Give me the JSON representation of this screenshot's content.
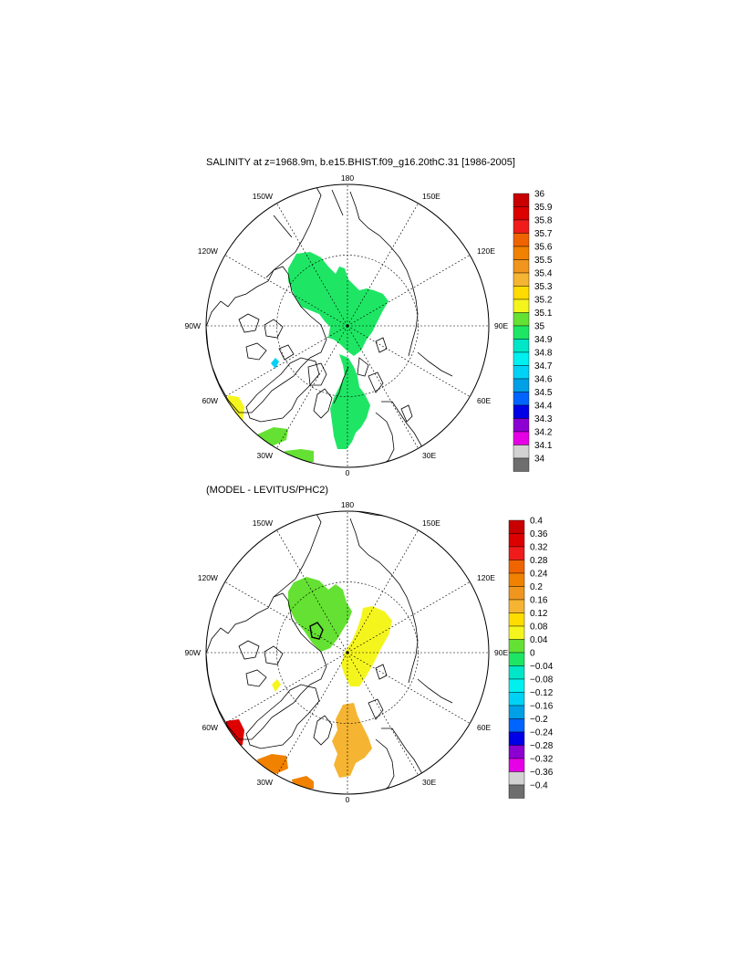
{
  "panel1": {
    "title": "SALINITY at z=1968.9m, b.e15.BHIST.f09_g16.20thC.31 [1986-2005]",
    "lon_labels": [
      "180",
      "150E",
      "120E",
      "90E",
      "60E",
      "30E",
      "0",
      "30W",
      "60W",
      "90W",
      "120W",
      "150W"
    ],
    "colorbar": {
      "labels": [
        "36",
        "35.9",
        "35.8",
        "35.7",
        "35.6",
        "35.5",
        "35.4",
        "35.3",
        "35.2",
        "35.1",
        "35",
        "34.9",
        "34.8",
        "34.7",
        "34.6",
        "34.5",
        "34.4",
        "34.3",
        "34.2",
        "34.1",
        "34"
      ],
      "colors": [
        "#c80000",
        "#dc0000",
        "#f01c1c",
        "#f06400",
        "#f08200",
        "#f0961e",
        "#f5b432",
        "#ffdc00",
        "#f5f51e",
        "#64e132",
        "#1ee664",
        "#00e6c8",
        "#00f0f0",
        "#00d2f5",
        "#00a0e6",
        "#0064ff",
        "#0000e6",
        "#8c00d2",
        "#e600e6",
        "#d2d2d2",
        "#6e6e6e"
      ]
    }
  },
  "panel2": {
    "title": "(MODEL - LEVITUS/PHC2)",
    "lon_labels": [
      "180",
      "150E",
      "120E",
      "90E",
      "60E",
      "30E",
      "0",
      "30W",
      "60W",
      "90W",
      "120W",
      "150W"
    ],
    "colorbar": {
      "labels": [
        "0.4",
        "0.36",
        "0.32",
        "0.28",
        "0.24",
        "0.2",
        "0.16",
        "0.12",
        "0.08",
        "0.04",
        "0",
        "−0.04",
        "−0.08",
        "−0.12",
        "−0.16",
        "−0.2",
        "−0.24",
        "−0.28",
        "−0.32",
        "−0.36",
        "−0.4"
      ],
      "colors": [
        "#c80000",
        "#dc0000",
        "#f01c1c",
        "#f06400",
        "#f08200",
        "#f0961e",
        "#f5b432",
        "#ffdc00",
        "#f5f51e",
        "#64e132",
        "#1ee664",
        "#00e6c8",
        "#00f0f0",
        "#00d2f5",
        "#00a0e6",
        "#0064ff",
        "#0000e6",
        "#8c00d2",
        "#e600e6",
        "#d2d2d2",
        "#6e6e6e"
      ]
    }
  }
}
